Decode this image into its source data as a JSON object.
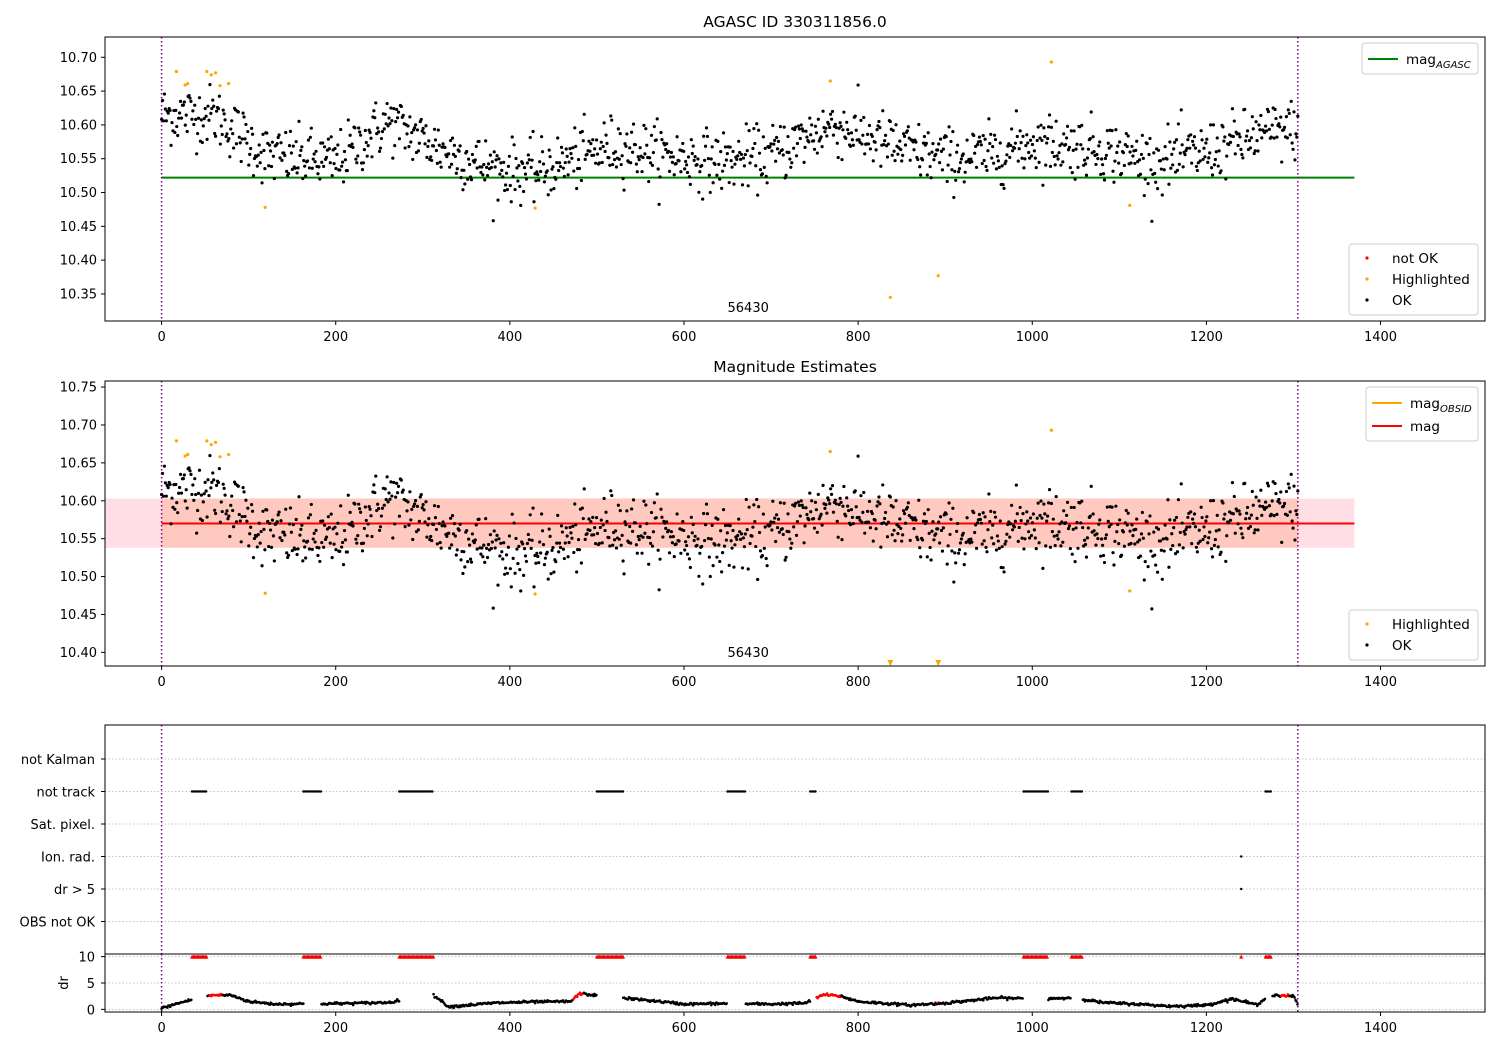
{
  "chart_data": [
    {
      "type": "scatter",
      "title": "AGASC ID 330311856.0",
      "xlim": [
        -65,
        1520
      ],
      "ylim": [
        10.31,
        10.73
      ],
      "xticks": [
        0,
        200,
        400,
        600,
        800,
        1000,
        1200,
        1400
      ],
      "yticks": [
        10.35,
        10.4,
        10.45,
        10.5,
        10.55,
        10.6,
        10.65,
        10.7
      ],
      "obsid_label": "56430",
      "obsid_label_x": 650,
      "vlines": [
        0,
        1305
      ],
      "lines": [
        {
          "name": "mag",
          "subscript": "AGASC",
          "color": "#008000",
          "x": [
            0,
            1370
          ],
          "y": 10.522
        }
      ],
      "legend_lines_position": "upper right",
      "legend_points": [
        {
          "name": "not OK",
          "color": "#ff0000"
        },
        {
          "name": "Highlighted",
          "color": "#ffa500"
        },
        {
          "name": "OK",
          "color": "#000000"
        }
      ],
      "legend_points_position": "lower right",
      "series_ok": {
        "name": "OK",
        "color": "#000000",
        "x_range": [
          0,
          1305
        ],
        "n_points": 1200,
        "trend": {
          "x": [
            0,
            60,
            120,
            200,
            260,
            320,
            380,
            430,
            520,
            580,
            640,
            700,
            770,
            850,
            900,
            950,
            1000,
            1080,
            1140,
            1200,
            1260,
            1305
          ],
          "y": [
            10.615,
            10.615,
            10.555,
            10.545,
            10.605,
            10.565,
            10.535,
            10.53,
            10.57,
            10.555,
            10.545,
            10.555,
            10.6,
            10.565,
            10.55,
            10.555,
            10.575,
            10.565,
            10.545,
            10.56,
            10.585,
            10.595
          ]
        },
        "scatter_sd": 0.022
      },
      "series_highlighted": {
        "name": "Highlighted",
        "color": "#ffa500",
        "x": [
          17,
          27,
          30,
          52,
          57,
          62,
          67,
          77,
          119,
          429,
          768,
          837,
          892,
          1022,
          1112
        ],
        "y": [
          10.679,
          10.659,
          10.661,
          10.679,
          10.674,
          10.677,
          10.658,
          10.661,
          10.478,
          10.477,
          10.665,
          10.345,
          10.377,
          10.693,
          10.481
        ]
      }
    },
    {
      "type": "scatter",
      "title": "Magnitude Estimates",
      "xlim": [
        -65,
        1520
      ],
      "ylim": [
        10.382,
        10.758
      ],
      "xticks": [
        0,
        200,
        400,
        600,
        800,
        1000,
        1200,
        1400
      ],
      "yticks": [
        10.4,
        10.45,
        10.5,
        10.55,
        10.6,
        10.65,
        10.7,
        10.75
      ],
      "obsid_label": "56430",
      "obsid_label_x": 650,
      "vlines": [
        0,
        1305
      ],
      "lines": [
        {
          "name": "mag",
          "subscript": "OBSID",
          "color": "#ffa500",
          "x": [
            0,
            1370
          ],
          "y": 10.57
        },
        {
          "name": "mag",
          "subscript": "",
          "color": "#ff0000",
          "x": [
            0,
            1370
          ],
          "y": 10.57
        }
      ],
      "bands": [
        {
          "color": "#ffc0cb",
          "opacity": 0.5,
          "x": [
            -65,
            1370
          ],
          "y": [
            10.538,
            10.603
          ]
        },
        {
          "color": "#ffa07a",
          "opacity": 0.35,
          "x": [
            0,
            1305
          ],
          "y": [
            10.538,
            10.603
          ]
        }
      ],
      "legend_lines_position": "upper right",
      "legend_points": [
        {
          "name": "Highlighted",
          "color": "#ffa500"
        },
        {
          "name": "OK",
          "color": "#000000"
        }
      ],
      "legend_points_position": "lower right",
      "off_scale_markers": {
        "color": "#ffa500",
        "x": [
          837,
          892
        ],
        "y": 10.386
      },
      "series_highlighted": {
        "name": "Highlighted",
        "color": "#ffa500",
        "x": [
          17,
          27,
          30,
          52,
          57,
          62,
          67,
          77,
          119,
          429,
          768,
          1022,
          1112
        ],
        "y": [
          10.679,
          10.659,
          10.661,
          10.679,
          10.674,
          10.677,
          10.658,
          10.661,
          10.478,
          10.477,
          10.665,
          10.693,
          10.481
        ]
      }
    },
    {
      "type": "scatter",
      "xlim": [
        -65,
        1520
      ],
      "xticks": [
        0,
        200,
        400,
        600,
        800,
        1000,
        1200,
        1400
      ],
      "vlines": [
        0,
        1305
      ],
      "categories": [
        "not Kalman",
        "not track",
        "Sat. pixel.",
        "Ion. rad.",
        "dr > 5",
        "OBS not OK"
      ],
      "flags": {
        "not track": [
          [
            35,
            52
          ],
          [
            163,
            183
          ],
          [
            273,
            312
          ],
          [
            500,
            530
          ],
          [
            650,
            670
          ],
          [
            745,
            752
          ],
          [
            990,
            1018
          ],
          [
            1045,
            1058
          ],
          [
            1268,
            1275
          ]
        ],
        "Ion. rad.": [
          [
            1240,
            1241
          ]
        ],
        "dr > 5": [
          [
            1240,
            1241
          ]
        ]
      }
    },
    {
      "type": "scatter",
      "ylabel": "dr",
      "xlim": [
        -65,
        1520
      ],
      "ylim": [
        -0.5,
        10.5
      ],
      "yticks": [
        0,
        5,
        10
      ],
      "xticks": [
        0,
        200,
        400,
        600,
        800,
        1000,
        1200,
        1400
      ],
      "xtick_labels": [
        "0",
        "200",
        "400",
        "600",
        "800",
        "1000",
        "1200",
        "1400"
      ],
      "vlines": [
        0,
        1305
      ],
      "dr_trend": {
        "x": [
          0,
          20,
          50,
          60,
          80,
          100,
          130,
          200,
          260,
          300,
          310,
          330,
          380,
          420,
          470,
          480,
          520,
          560,
          600,
          640,
          700,
          740,
          760,
          780,
          800,
          860,
          900,
          960,
          1000,
          1050,
          1080,
          1120,
          1160,
          1200,
          1230,
          1260,
          1270,
          1300,
          1305
        ],
        "y": [
          0.2,
          1.2,
          2.5,
          2.7,
          2.7,
          1.5,
          1.0,
          1.1,
          1.3,
          2.5,
          3.0,
          0.5,
          1.2,
          1.4,
          1.5,
          3.0,
          2.3,
          1.7,
          1.0,
          1.1,
          1.0,
          1.2,
          2.8,
          2.5,
          1.5,
          0.8,
          1.2,
          2.2,
          2.0,
          2.2,
          1.3,
          1.0,
          0.6,
          0.8,
          2.0,
          0.8,
          2.8,
          2.5,
          1.0
        ]
      },
      "clipped_value": 10,
      "clipped_color": "#ff0000",
      "clipped_ranges": [
        [
          35,
          52
        ],
        [
          163,
          183
        ],
        [
          273,
          312
        ],
        [
          500,
          530
        ],
        [
          650,
          670
        ],
        [
          745,
          752
        ],
        [
          990,
          1018
        ],
        [
          1045,
          1058
        ],
        [
          1240,
          1241
        ],
        [
          1268,
          1275
        ]
      ],
      "red_points_x": [
        [
          55,
          70
        ],
        [
          305,
          310
        ],
        [
          473,
          485
        ],
        [
          750,
          780
        ],
        [
          892,
          893
        ],
        [
          1285,
          1295
        ]
      ]
    }
  ]
}
